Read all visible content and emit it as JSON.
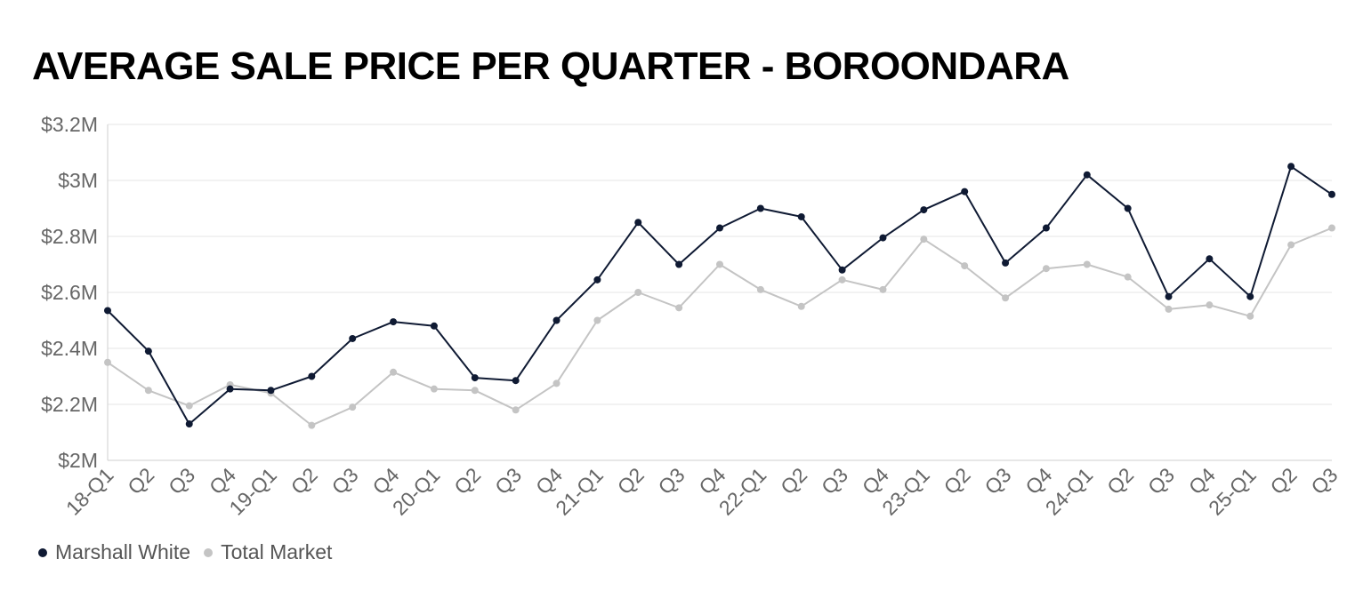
{
  "colors": {
    "marshall_white": "#0f1a33",
    "total_market": "#c4c4c4",
    "grid": "#e6e6e6",
    "tick_text": "#666666"
  },
  "chart_data": {
    "type": "line",
    "title": "AVERAGE SALE PRICE PER QUARTER - BOROONDARA",
    "xlabel": "",
    "ylabel": "",
    "categories": [
      "18-Q1",
      "Q2",
      "Q3",
      "Q4",
      "19-Q1",
      "Q2",
      "Q3",
      "Q4",
      "20-Q1",
      "Q2",
      "Q3",
      "Q4",
      "21-Q1",
      "Q2",
      "Q3",
      "Q4",
      "22-Q1",
      "Q2",
      "Q3",
      "Q4",
      "23-Q1",
      "Q2",
      "Q3",
      "Q4",
      "24-Q1",
      "Q2",
      "Q3",
      "Q4",
      "25-Q1",
      "Q2",
      "Q3"
    ],
    "yticks": [
      {
        "value": 2.0,
        "label": "$2M"
      },
      {
        "value": 2.2,
        "label": "$2.2M"
      },
      {
        "value": 2.4,
        "label": "$2.4M"
      },
      {
        "value": 2.6,
        "label": "$2.6M"
      },
      {
        "value": 2.8,
        "label": "$2.8M"
      },
      {
        "value": 3.0,
        "label": "$3M"
      },
      {
        "value": 3.2,
        "label": "$3.2M"
      }
    ],
    "ylim": [
      2.0,
      3.2
    ],
    "grid": true,
    "legend_position": "bottom-left",
    "series": [
      {
        "name": "Marshall White",
        "color_key": "marshall_white",
        "values": [
          2.535,
          2.39,
          2.13,
          2.255,
          2.25,
          2.3,
          2.435,
          2.495,
          2.48,
          2.295,
          2.285,
          2.5,
          2.645,
          2.85,
          2.7,
          2.83,
          2.9,
          2.87,
          2.68,
          2.795,
          2.895,
          2.96,
          2.705,
          2.83,
          3.02,
          2.9,
          2.585,
          2.72,
          2.585,
          3.05,
          2.95
        ]
      },
      {
        "name": "Total Market",
        "color_key": "total_market",
        "values": [
          2.35,
          2.25,
          2.195,
          2.27,
          2.24,
          2.125,
          2.19,
          2.315,
          2.255,
          2.25,
          2.18,
          2.275,
          2.5,
          2.6,
          2.545,
          2.7,
          2.61,
          2.55,
          2.645,
          2.61,
          2.79,
          2.695,
          2.58,
          2.685,
          2.7,
          2.655,
          2.54,
          2.555,
          2.515,
          2.77,
          2.83
        ]
      }
    ]
  }
}
